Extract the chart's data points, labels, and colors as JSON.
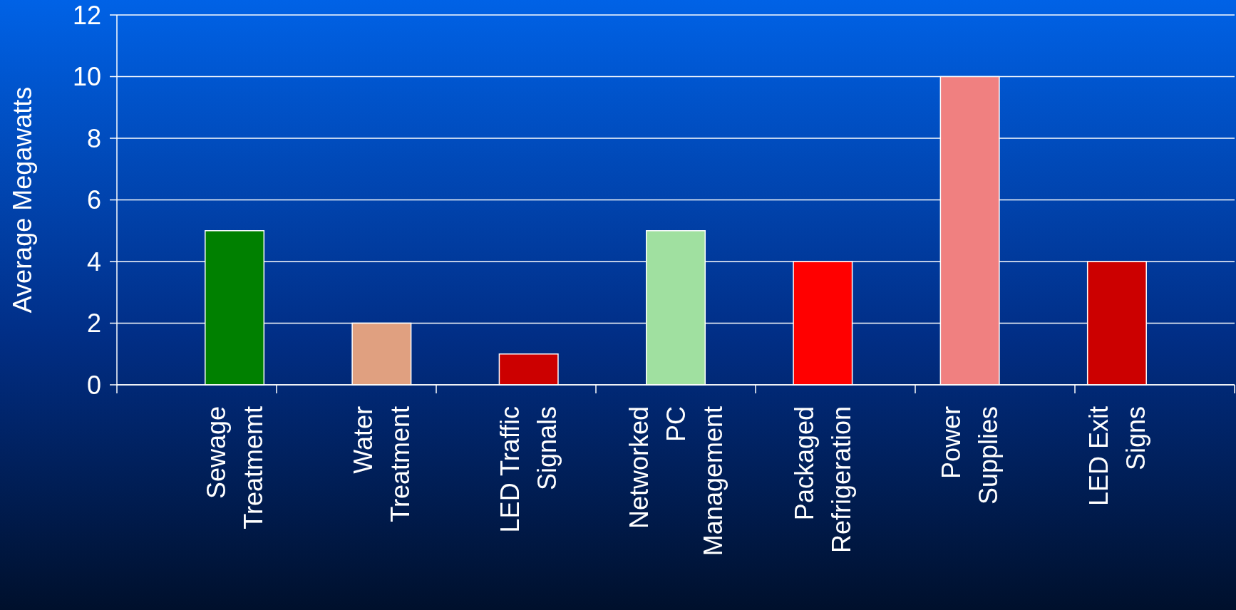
{
  "chart_data": {
    "type": "bar",
    "ylabel": "Average Megawatts",
    "categories": [
      "Sewage\nTreatmemt",
      "Water\nTreatment",
      "LED Traffic\nSignals",
      "Networked\nPC\nManagement",
      "Packaged\nRefrigeration",
      "Power\nSupplies",
      "LED Exit\nSigns"
    ],
    "values": [
      5,
      2,
      1,
      5,
      4,
      10,
      4
    ],
    "colors": [
      "#008000",
      "#e0a080",
      "#cc0000",
      "#a0e0a0",
      "#ff0000",
      "#f08080",
      "#cc0000"
    ],
    "ylim": [
      0,
      12
    ],
    "yticks": [
      0,
      2,
      4,
      6,
      8,
      10,
      12
    ],
    "grid": "y"
  }
}
